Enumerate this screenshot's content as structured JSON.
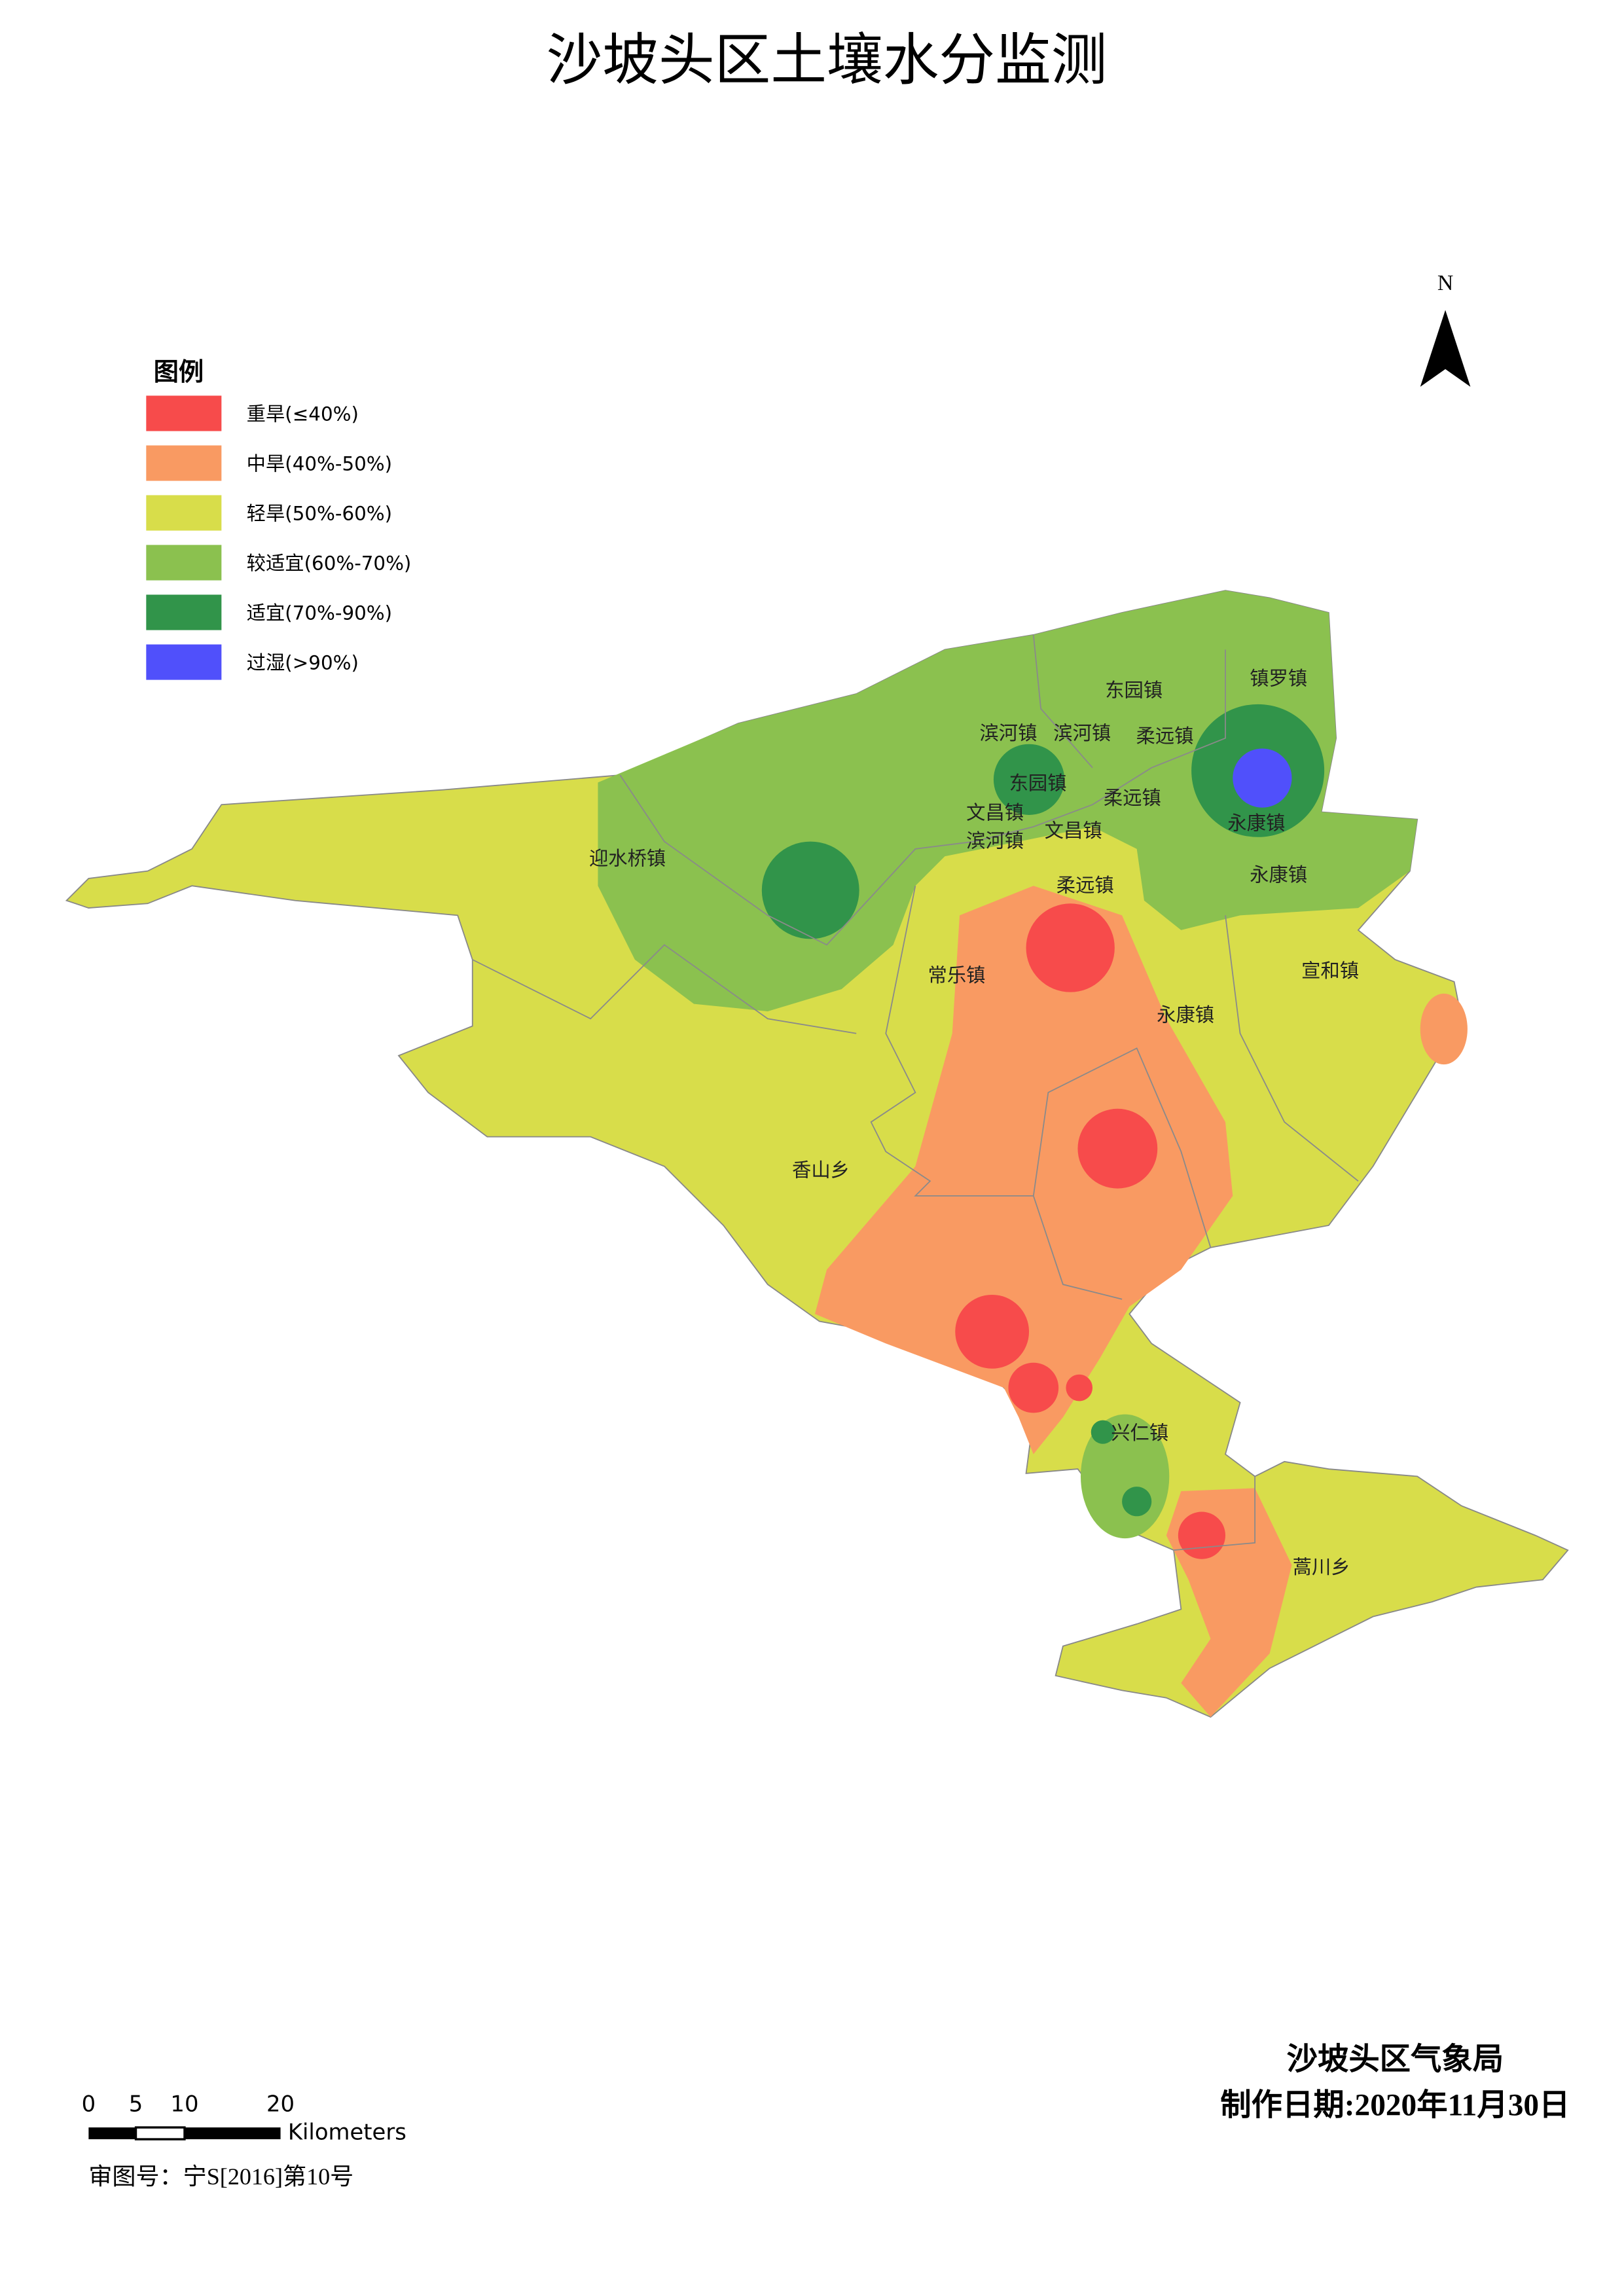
{
  "header": {
    "title": "沙坡头区土壤水分监测"
  },
  "legend": {
    "title": "图例",
    "items": [
      {
        "label": "重旱(≤40%)",
        "color": "#f74b4b"
      },
      {
        "label": "中旱(40%-50%)",
        "color": "#f99a62"
      },
      {
        "label": "轻旱(50%-60%)",
        "color": "#d8dd4a"
      },
      {
        "label": "较适宜(60%-70%)",
        "color": "#8bc14f"
      },
      {
        "label": "适宜(70%-90%)",
        "color": "#31944a"
      },
      {
        "label": "过湿(>90%)",
        "color": "#5050fb"
      }
    ]
  },
  "north": "N",
  "map": {
    "places": [
      "东园镇",
      "镇罗镇",
      "滨河镇",
      "滨河镇",
      "柔远镇",
      "东园镇",
      "柔远镇",
      "文昌镇",
      "滨河镇",
      "文昌镇",
      "永康镇",
      "迎水桥镇",
      "永康镇",
      "柔远镇",
      "常乐镇",
      "宣和镇",
      "永康镇",
      "香山乡",
      "兴仁镇",
      "蒿川乡"
    ]
  },
  "scale_bar": {
    "ticks": [
      "0",
      "5",
      "10",
      "20"
    ],
    "unit": "Kilometers"
  },
  "footer": {
    "review_no": "审图号：宁S[2016]第10号",
    "agency": "沙坡头区气象局",
    "date": "制作日期:2020年11月30日"
  }
}
